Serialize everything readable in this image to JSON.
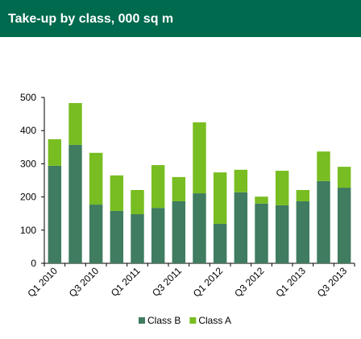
{
  "chart_data": {
    "type": "stacked_bar",
    "title": "Take-up by class,  000 sq m",
    "categories": [
      "Q1 2010",
      null,
      "Q3 2010",
      null,
      "Q1 2011",
      null,
      "Q3 2011",
      null,
      "Q1 2012",
      null,
      "Q3 2012",
      null,
      "Q1 2013",
      null,
      "Q3 2013"
    ],
    "series": [
      {
        "name": "Class B",
        "color": "#3f7c60",
        "values": [
          294,
          357,
          177,
          158,
          148,
          167,
          187,
          211,
          119,
          214,
          180,
          175,
          187,
          248,
          228
        ]
      },
      {
        "name": "Class A",
        "color": "#78bd21",
        "values": [
          80,
          126,
          156,
          107,
          73,
          129,
          73,
          214,
          155,
          68,
          21,
          104,
          34,
          89,
          63
        ]
      }
    ],
    "ylim": [
      0,
      500
    ],
    "yticks": [
      0,
      100,
      200,
      300,
      400,
      500
    ],
    "grid": false,
    "legend": "bottom"
  }
}
